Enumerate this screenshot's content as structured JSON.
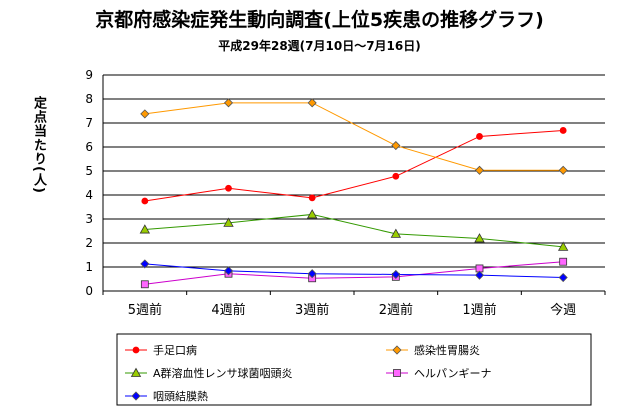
{
  "chart_data": {
    "type": "line",
    "title": "京都府感染症発生動向調査(上位5疾患の推移グラフ)",
    "subtitle": "平成29年28週(7月10日～7月16日)",
    "ylabel": "定点当たり(人)",
    "xlabel": "",
    "ylim": [
      0,
      9
    ],
    "yticks": [
      "0",
      "1",
      "2",
      "3",
      "4",
      "5",
      "6",
      "7",
      "8",
      "9"
    ],
    "categories": [
      "5週前",
      "4週前",
      "3週前",
      "2週前",
      "1週前",
      "今週"
    ],
    "grid": true,
    "legend_position": "bottom",
    "series": [
      {
        "name": "手足口病",
        "color": "#ff0000",
        "marker": "circle",
        "values": [
          3.75,
          4.28,
          3.88,
          4.78,
          6.44,
          6.69
        ]
      },
      {
        "name": "感染性胃腸炎",
        "color": "#ff9900",
        "marker": "diamond",
        "values": [
          7.38,
          7.84,
          7.84,
          6.06,
          5.03,
          5.03
        ]
      },
      {
        "name": "A群溶血性レンサ球菌咽頭炎",
        "color": "#339900",
        "marker": "triangle",
        "values": [
          2.56,
          2.84,
          3.19,
          2.38,
          2.19,
          1.84
        ]
      },
      {
        "name": "ヘルパンギーナ",
        "color": "#cc00cc",
        "marker": "square",
        "values": [
          0.28,
          0.72,
          0.53,
          0.59,
          0.94,
          1.22
        ]
      },
      {
        "name": "咽頭結膜熱",
        "color": "#0000ff",
        "marker": "diamond",
        "values": [
          1.13,
          0.84,
          0.72,
          0.69,
          0.66,
          0.56
        ]
      }
    ]
  }
}
